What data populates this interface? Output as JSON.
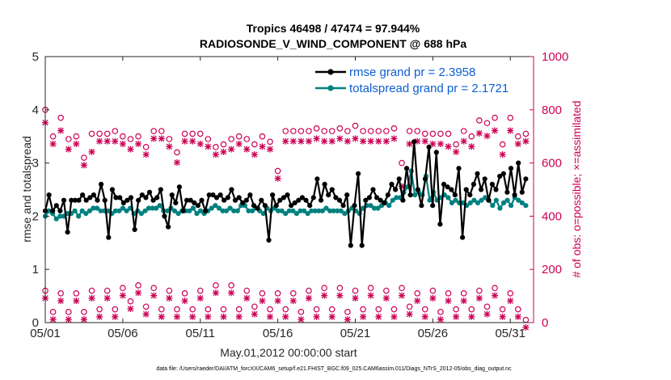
{
  "chart_data": {
    "type": "line",
    "title": "Tropics 46498 / 47474 = 97.944%",
    "subtitle": "RADIOSONDE_V_WIND_COMPONENT @ 688 hPa",
    "xlabel": "May.01,2012 00:00:00 start",
    "ylabel": "rmse and totalspread",
    "ylabel_right": "# of obs: o=possible; ×=assimilated",
    "xlim": [
      0,
      31.5
    ],
    "ylim": [
      0,
      5
    ],
    "ylim_right": [
      0,
      1000
    ],
    "x_ticks": [
      0,
      5,
      10,
      15,
      20,
      25,
      30
    ],
    "x_tick_labels": [
      "05/01",
      "05/06",
      "05/11",
      "05/16",
      "05/21",
      "05/26",
      "05/31"
    ],
    "y_ticks": [
      "0",
      "1",
      "2",
      "3",
      "4",
      "5"
    ],
    "y_ticks_right": [
      "0",
      "200",
      "400",
      "600",
      "800",
      "1000"
    ],
    "grid": false,
    "legend_position": "top-right",
    "colors": {
      "rmse": "#000000",
      "spread": "#008080",
      "obs": "#cc0055",
      "legend_text": "#0b5ed7"
    },
    "series": [
      {
        "name": "rmse grand pr = 2.3958",
        "axis": "left",
        "values": [
          2.1,
          2.4,
          2.1,
          2.2,
          2.1,
          2.3,
          1.7,
          2.3,
          2.3,
          2.3,
          2.4,
          2.3,
          2.35,
          2.4,
          2.3,
          2.6,
          2.3,
          1.6,
          2.5,
          2.35,
          2.35,
          2.25,
          2.3,
          2.35,
          1.75,
          2.3,
          2.4,
          2.35,
          2.45,
          2.3,
          2.35,
          2.5,
          2.0,
          1.8,
          2.4,
          2.25,
          2.55,
          2.1,
          2.3,
          2.3,
          2.25,
          2.2,
          2.3,
          2.1,
          2.4,
          2.4,
          2.35,
          2.4,
          2.3,
          2.35,
          2.5,
          2.3,
          2.35,
          2.25,
          2.3,
          2.4,
          2.2,
          2.15,
          2.3,
          2.2,
          1.55,
          2.4,
          2.2,
          2.3,
          2.35,
          2.4,
          2.2,
          2.25,
          2.3,
          2.35,
          2.3,
          2.2,
          2.35,
          2.7,
          2.3,
          2.6,
          2.4,
          2.5,
          2.35,
          2.3,
          2.2,
          2.4,
          1.45,
          2.2,
          2.8,
          1.45,
          2.3,
          2.35,
          2.5,
          2.35,
          2.3,
          2.25,
          2.4,
          2.6,
          2.5,
          2.7,
          2.3,
          2.9,
          2.4,
          3.4,
          2.5,
          2.2,
          2.7,
          3.3,
          2.2,
          3.2,
          1.85,
          2.6,
          2.55,
          2.5,
          2.4,
          2.9,
          1.6,
          2.5,
          2.4,
          2.6,
          2.8,
          2.5,
          2.7,
          2.3,
          2.6,
          2.5,
          2.75,
          2.8,
          2.45,
          2.9,
          2.4,
          3.0,
          2.45,
          2.7
        ],
        "values_label": "rmse (left axis)"
      },
      {
        "name": "totalspread grand pr = 2.1721",
        "axis": "left",
        "values": [
          2.0,
          2.1,
          2.05,
          1.95,
          2.0,
          2.0,
          2.05,
          2.05,
          2.1,
          2.0,
          2.1,
          2.05,
          2.1,
          2.15,
          2.15,
          2.1,
          2.1,
          2.1,
          2.05,
          2.1,
          2.1,
          2.15,
          2.1,
          2.15,
          2.05,
          2.1,
          2.05,
          2.1,
          2.15,
          2.15,
          2.15,
          2.2,
          2.1,
          2.1,
          2.15,
          2.1,
          2.05,
          2.1,
          2.1,
          2.1,
          2.15,
          2.05,
          2.1,
          2.05,
          2.1,
          2.15,
          2.2,
          2.15,
          2.1,
          2.1,
          2.15,
          2.1,
          2.1,
          2.2,
          2.2,
          2.1,
          2.1,
          2.15,
          2.1,
          2.05,
          2.15,
          2.1,
          2.15,
          2.1,
          2.1,
          2.05,
          2.1,
          2.1,
          2.05,
          2.1,
          2.1,
          2.05,
          2.1,
          2.1,
          2.1,
          2.1,
          2.15,
          2.1,
          2.1,
          2.1,
          2.1,
          2.05,
          2.1,
          2.15,
          2.1,
          2.05,
          2.15,
          2.2,
          2.2,
          2.15,
          2.15,
          2.2,
          2.25,
          2.2,
          2.3,
          2.35,
          2.35,
          2.45,
          2.55,
          2.85,
          2.4,
          2.45,
          2.4,
          2.75,
          2.3,
          2.45,
          2.3,
          2.35,
          2.4,
          2.35,
          2.25,
          2.3,
          2.25,
          2.25,
          2.2,
          2.25,
          2.3,
          2.25,
          2.3,
          2.35,
          2.3,
          2.2,
          2.3,
          2.15,
          2.25,
          2.3,
          2.2,
          2.35,
          2.3,
          2.25,
          2.2
        ]
      },
      {
        "name": "obs possible (evening)",
        "axis": "right",
        "marker": "o",
        "values": [
          800,
          700,
          770,
          690,
          700,
          620,
          710,
          710,
          710,
          720,
          700,
          690,
          700,
          660,
          720,
          720,
          690,
          640,
          710,
          710,
          710,
          690,
          660,
          670,
          690,
          700,
          690,
          670,
          700,
          680,
          570,
          720,
          720,
          720,
          720,
          730,
          720,
          720,
          730,
          720,
          740,
          720,
          720,
          720,
          720,
          730,
          600,
          720,
          720,
          710,
          710,
          710,
          710,
          670,
          720,
          700,
          760,
          750,
          770,
          670,
          770,
          700,
          710
        ]
      },
      {
        "name": "obs assimilated (evening)",
        "axis": "right",
        "marker": "x",
        "values": [
          770,
          690,
          740,
          670,
          690,
          610,
          660,
          700,
          700,
          700,
          690,
          670,
          690,
          650,
          710,
          710,
          680,
          620,
          700,
          700,
          690,
          680,
          650,
          660,
          670,
          690,
          670,
          650,
          680,
          670,
          560,
          700,
          700,
          700,
          700,
          710,
          700,
          700,
          710,
          700,
          710,
          700,
          700,
          700,
          700,
          710,
          530,
          690,
          700,
          700,
          690,
          690,
          680,
          660,
          700,
          680,
          730,
          720,
          740,
          650,
          740,
          690,
          700
        ]
      },
      {
        "name": "obs possible (morning)",
        "axis": "right",
        "marker": "o",
        "values": [
          120,
          40,
          110,
          40,
          110,
          40,
          120,
          50,
          120,
          50,
          130,
          80,
          140,
          60,
          130,
          50,
          120,
          50,
          110,
          50,
          120,
          50,
          140,
          50,
          140,
          50,
          120,
          60,
          110,
          50,
          110,
          50,
          110,
          40,
          120,
          50,
          130,
          50,
          130,
          40,
          120,
          50,
          130,
          50,
          120,
          50,
          130,
          60,
          110,
          50,
          120,
          40,
          110,
          50,
          110,
          50,
          120,
          60,
          130,
          50,
          110,
          50,
          10
        ]
      },
      {
        "name": "obs assimilated (morning)",
        "axis": "right",
        "marker": "x",
        "values": [
          110,
          30,
          100,
          30,
          100,
          30,
          110,
          40,
          110,
          40,
          120,
          70,
          130,
          50,
          120,
          40,
          110,
          40,
          100,
          40,
          110,
          40,
          130,
          40,
          130,
          40,
          110,
          50,
          100,
          40,
          100,
          40,
          100,
          30,
          110,
          40,
          120,
          40,
          120,
          30,
          110,
          40,
          120,
          40,
          110,
          40,
          120,
          50,
          100,
          40,
          110,
          30,
          100,
          40,
          100,
          40,
          110,
          50,
          120,
          40,
          100,
          40,
          0
        ]
      }
    ],
    "footnote": "data file: /Users/raeder/DAI/ATM_forcXX/CAM6_setup/f.e21.FHIST_BGC.f09_025.CAM6assim.011/Diags_NTrS_2012-05/obs_diag_output.nc"
  }
}
